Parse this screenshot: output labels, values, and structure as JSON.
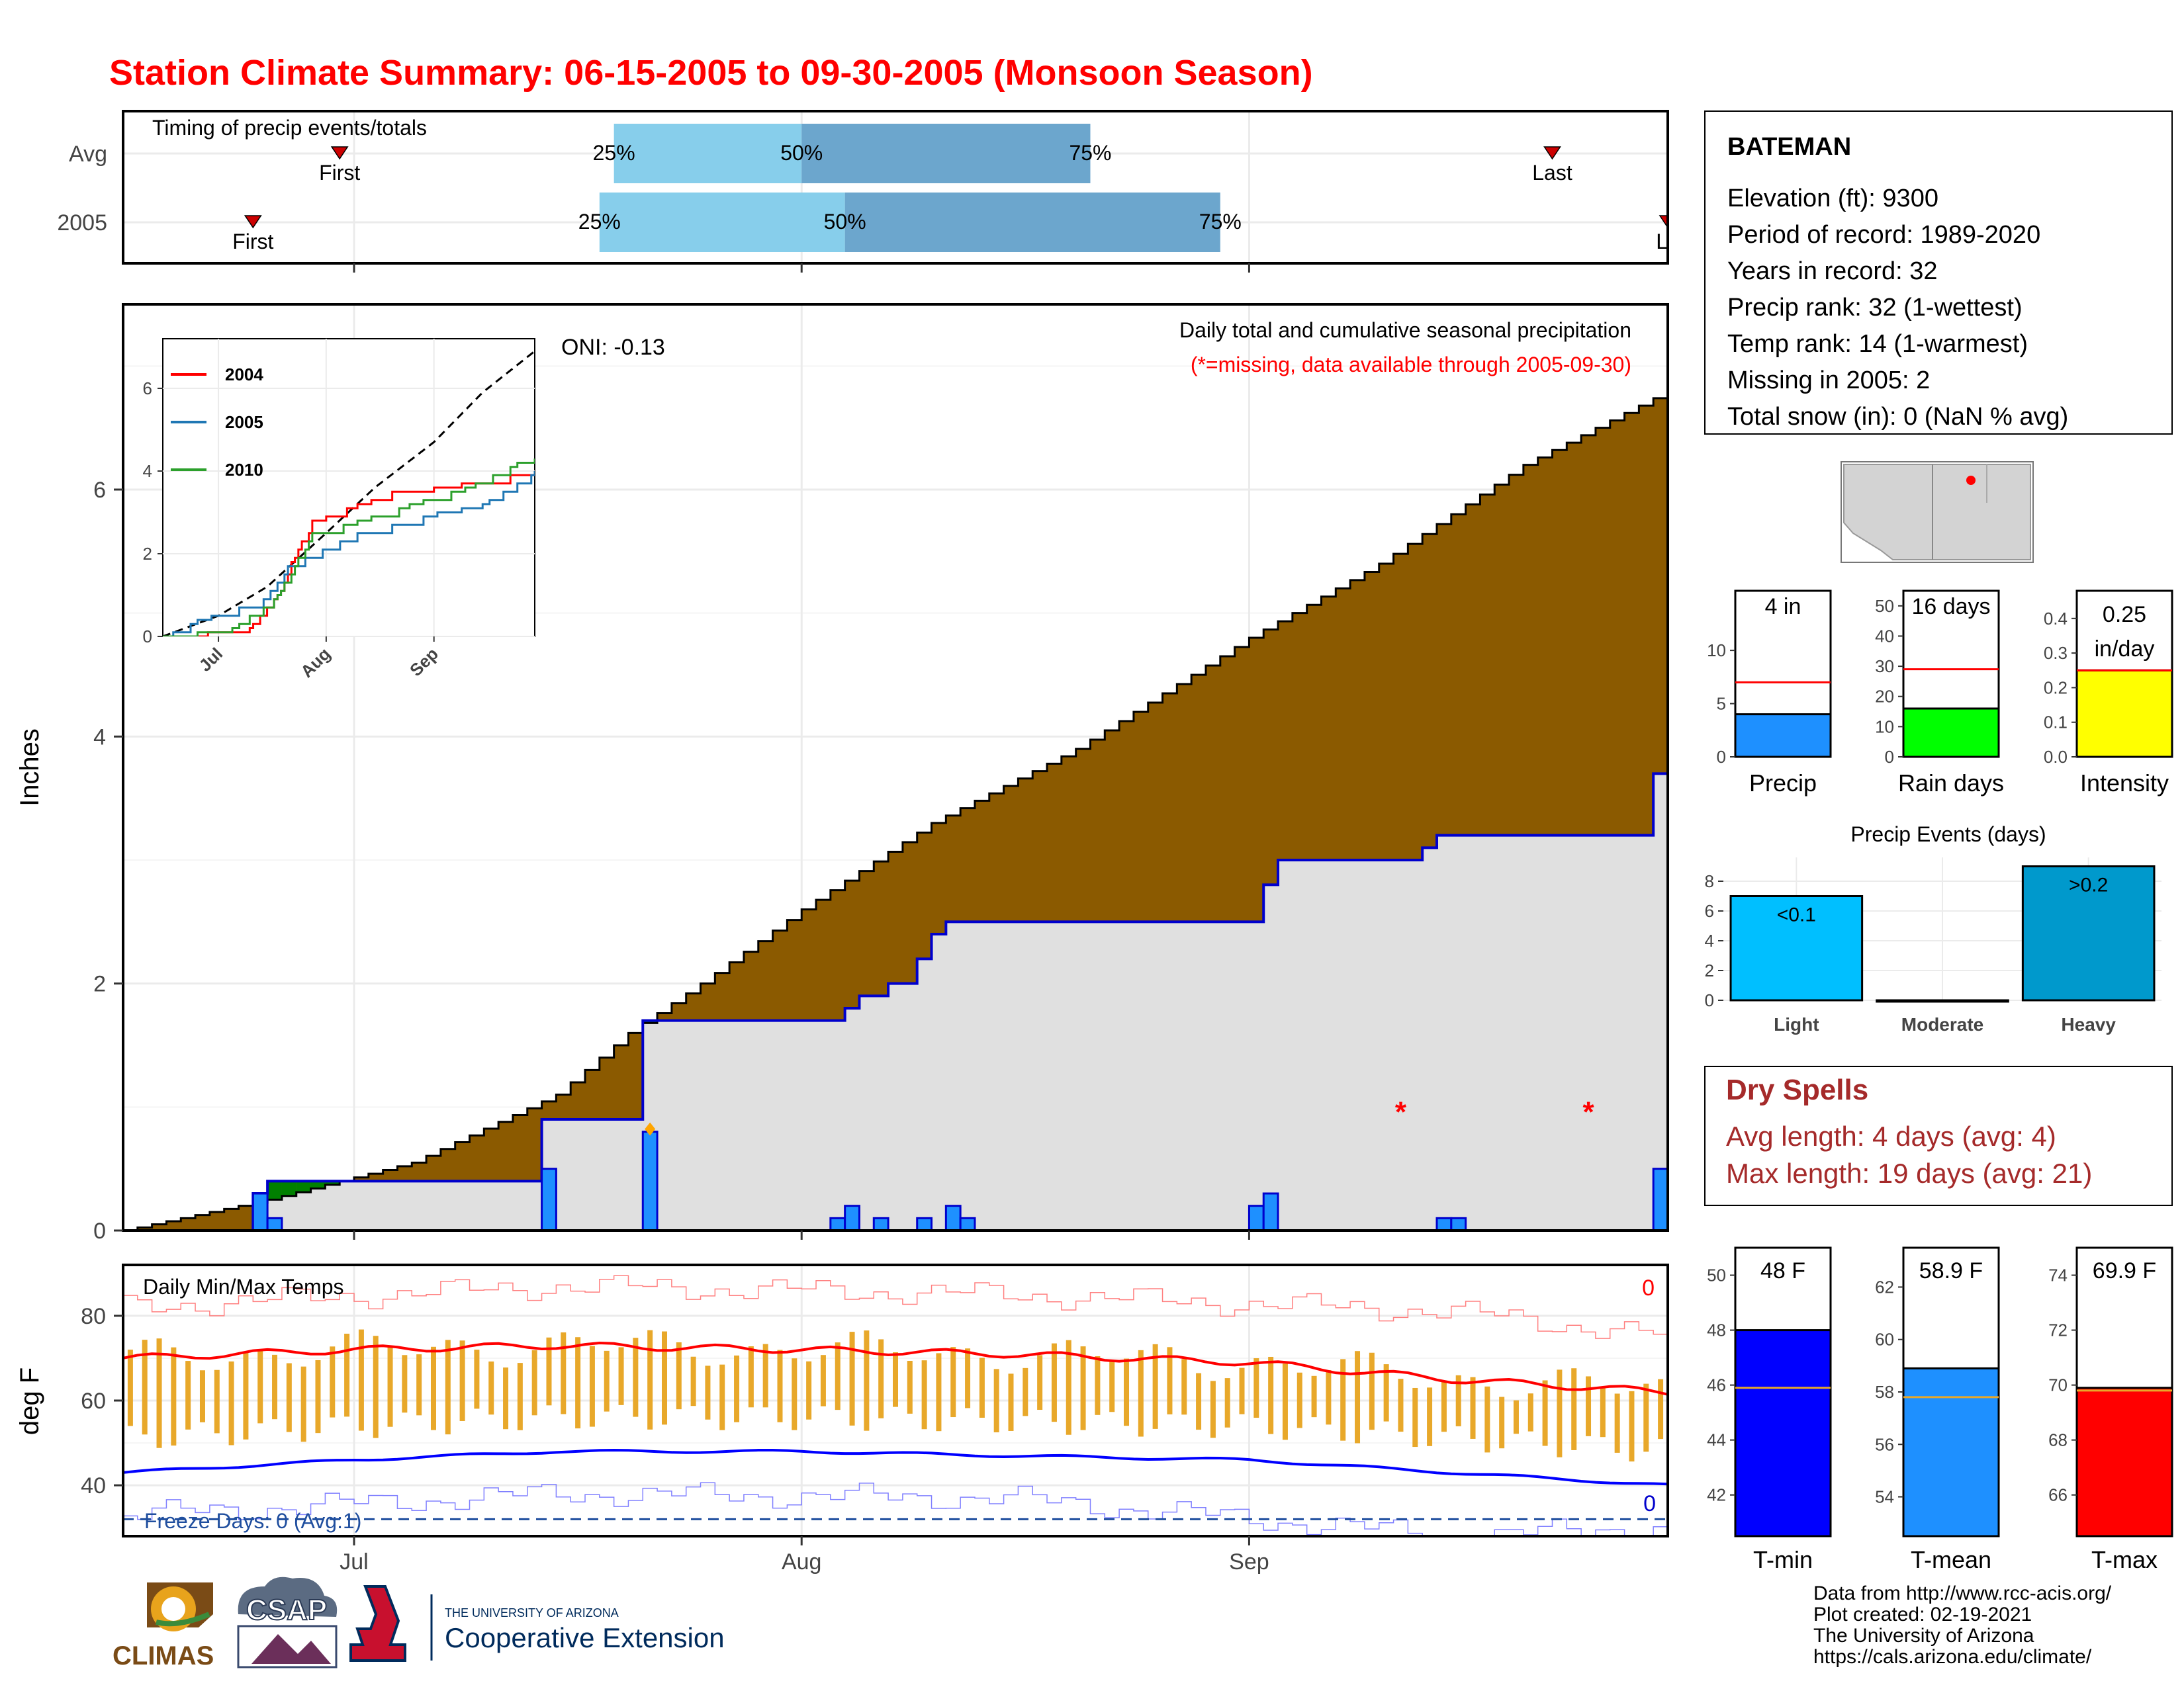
{
  "page": {
    "title": "Station Climate Summary: 06-15-2005 to 09-30-2005 (Monsoon Season)",
    "title_color": "#ff0000"
  },
  "timing": {
    "label": "Timing of precip events/totals",
    "rows": [
      {
        "label": "Avg",
        "first_label": "First",
        "last_label": "Last",
        "first_date": "2005-06-30",
        "last_date": "2005-09-22",
        "p25_date": "2005-07-19",
        "p50_date": "2005-08-01",
        "p75_date": "2005-08-21"
      },
      {
        "label": "2005",
        "first_label": "First",
        "last_label": "La",
        "first_date": "2005-06-24",
        "last_date": "2005-09-30",
        "p25_date": "2005-07-18",
        "p50_date": "2005-08-04",
        "p75_date": "2005-08-30"
      }
    ],
    "pct_labels": [
      "25%",
      "50%",
      "75%"
    ],
    "colors": {
      "light": "#87ceeb",
      "dark": "#6ca6cd",
      "marker": "#cc0000"
    }
  },
  "precip": {
    "ylabel": "Inches",
    "yticks": [
      "0",
      "2",
      "4",
      "6"
    ],
    "oni": "ONI: -0.13",
    "subtitle1": "Daily total and cumulative seasonal precipitation",
    "subtitle2": "(*=missing, data available through 2005-09-30)",
    "missing_marker": "*"
  },
  "inset": {
    "yticks": [
      "0",
      "2",
      "4",
      "6"
    ],
    "xticks": [
      "Jul",
      "Aug",
      "Sep"
    ],
    "legend": [
      {
        "name": "2004",
        "color": "#ff0000"
      },
      {
        "name": "2005",
        "color": "#1f77b4"
      },
      {
        "name": "2010",
        "color": "#2ca02c"
      }
    ]
  },
  "temps": {
    "ylabel": "deg F",
    "label": "Daily Min/Max Temps",
    "yticks": [
      "40",
      "60",
      "80"
    ],
    "top_count": "0",
    "bottom_count": "0",
    "freeze_label": "Freeze Days: 0 (Avg:1)"
  },
  "xaxis": {
    "ticks": [
      "Jul",
      "Aug",
      "Sep"
    ]
  },
  "station": {
    "name": "BATEMAN",
    "lines": [
      "Elevation (ft): 9300",
      "Period of record: 1989-2020",
      "Years in record: 32",
      "Precip rank: 32 (1-wettest)",
      "Temp rank: 14 (1-warmest)",
      "Missing in 2005: 2",
      "Total snow (in): 0 (NaN % avg)"
    ]
  },
  "mini_bars": [
    {
      "label": "Precip",
      "value_label": "4 in",
      "value_label2": "",
      "value": 4.0,
      "avg": 7.0,
      "ymax": 15.6,
      "ticks": [
        "0",
        "5",
        "10"
      ],
      "color": "#1e90ff"
    },
    {
      "label": "Rain days",
      "value_label": "16 days",
      "value_label2": "",
      "value": 16,
      "avg": 29,
      "ymax": 55,
      "ticks": [
        "0",
        "10",
        "20",
        "30",
        "40",
        "50"
      ],
      "color": "#00ff00"
    },
    {
      "label": "Intensity",
      "value_label": "0.25",
      "value_label2": "in/day",
      "value": 0.25,
      "avg": 0.25,
      "ymax": 0.48,
      "ticks": [
        "0.0",
        "0.1",
        "0.2",
        "0.3",
        "0.4"
      ],
      "color": "#ffff00"
    }
  ],
  "precip_events": {
    "title": "Precip Events (days)",
    "categories": [
      "Light",
      "Moderate",
      "Heavy"
    ],
    "values": [
      7,
      0,
      9
    ],
    "bar_labels": [
      "<0.1",
      "",
      ">0.2"
    ],
    "colors": [
      "#00bfff",
      "#00bfff",
      "#0099cc"
    ],
    "ticks": [
      "0",
      "2",
      "4",
      "6",
      "8"
    ]
  },
  "dry_spells": {
    "title": "Dry Spells",
    "avg_line": "Avg length: 4 days (avg: 4)",
    "max_line": "Max length: 19 days (avg: 21)",
    "color": "#a52a2a"
  },
  "temp_bars": [
    {
      "label": "T-min",
      "value_label": "48 F",
      "value": 48,
      "avg": 45.9,
      "ymin": 40.5,
      "ymax": 51,
      "ticks": [
        "42",
        "44",
        "46",
        "48",
        "50"
      ],
      "color": "#0000ff"
    },
    {
      "label": "T-mean",
      "value_label": "58.9 F",
      "value": 58.9,
      "avg": 57.8,
      "ymin": 52.5,
      "ymax": 63.5,
      "ticks": [
        "54",
        "56",
        "58",
        "60",
        "62"
      ],
      "color": "#1e90ff"
    },
    {
      "label": "T-max",
      "value_label": "69.9 F",
      "value": 69.9,
      "avg": 69.8,
      "ymin": 64.5,
      "ymax": 75,
      "ticks": [
        "66",
        "68",
        "70",
        "72",
        "74"
      ],
      "color": "#ff0000"
    }
  ],
  "credits": {
    "lines": [
      "Data from http://www.rcc-acis.org/",
      "Plot created: 02-19-2021",
      "The University of Arizona",
      "https://cals.arizona.edu/climate/"
    ],
    "climas": "CLIMAS",
    "csap": "CSAP",
    "ua_small": "THE UNIVERSITY OF ARIZONA",
    "ua_big": "Cooperative Extension"
  },
  "chart_data": [
    {
      "type": "area",
      "title": "Daily total and cumulative seasonal precipitation",
      "ylabel": "Inches",
      "ylim": [
        0,
        7.5
      ],
      "x_range": [
        "2005-06-15",
        "2005-09-30"
      ],
      "series": [
        {
          "name": "",
          "kind": "cumulative average (brown area top)",
          "x": [
            "2005-06-15",
            "2005-06-25",
            "2005-07-05",
            "2005-07-15",
            "2005-07-20",
            "2005-07-25",
            "2005-08-01",
            "2005-08-10",
            "2005-08-20",
            "2005-09-01",
            "2005-09-10",
            "2005-09-20",
            "2005-09-30"
          ],
          "values": [
            0.0,
            0.25,
            0.55,
            1.1,
            1.6,
            2.0,
            2.6,
            3.3,
            3.9,
            4.8,
            5.4,
            6.2,
            6.8
          ]
        },
        {
          "name": "",
          "kind": "cumulative 2005 (blue step line)",
          "x": [
            "2005-06-15",
            "2005-06-24",
            "2005-06-25",
            "2005-07-13",
            "2005-07-14",
            "2005-07-20",
            "2005-07-21",
            "2005-08-03",
            "2005-08-04",
            "2005-08-05",
            "2005-08-07",
            "2005-08-09",
            "2005-08-10",
            "2005-08-11",
            "2005-09-01",
            "2005-09-02",
            "2005-09-03",
            "2005-09-13",
            "2005-09-14",
            "2005-09-29",
            "2005-09-30"
          ],
          "values": [
            0,
            0.3,
            0.4,
            0.4,
            0.9,
            0.9,
            1.7,
            1.7,
            1.8,
            1.9,
            2.0,
            2.2,
            2.4,
            2.5,
            2.5,
            2.8,
            3.0,
            3.1,
            3.2,
            3.7,
            4.0
          ]
        },
        {
          "name": "",
          "kind": "daily precipitation (blue bars)",
          "x": [
            "2005-06-24",
            "2005-06-25",
            "2005-07-14",
            "2005-07-21",
            "2005-08-03",
            "2005-08-04",
            "2005-08-06",
            "2005-08-09",
            "2005-08-11",
            "2005-08-12",
            "2005-09-01",
            "2005-09-02",
            "2005-09-14",
            "2005-09-15",
            "2005-09-29",
            "2005-09-30"
          ],
          "values": [
            0.3,
            0.1,
            0.5,
            0.8,
            0.1,
            0.2,
            0.1,
            0.1,
            0.2,
            0.1,
            0.2,
            0.3,
            0.1,
            0.1,
            0.5,
            0.3
          ]
        },
        {
          "name": "",
          "kind": "missing days",
          "x": [
            "2005-09-11",
            "2005-09-24"
          ],
          "values": [
            1.0,
            1.0
          ]
        }
      ]
    },
    {
      "type": "line",
      "title": "",
      "xticks": [
        "Jul",
        "Aug",
        "Sep"
      ],
      "ylim": [
        0,
        7.2
      ],
      "series": [
        {
          "name": "",
          "kind": "average (dashed black)",
          "x": [
            "06-15",
            "07-01",
            "07-15",
            "08-01",
            "08-15",
            "09-01",
            "09-15",
            "09-30"
          ],
          "values": [
            0,
            0.5,
            1.2,
            2.5,
            3.6,
            4.7,
            5.9,
            6.9
          ]
        },
        {
          "name": "2004",
          "x": [
            "06-15",
            "07-10",
            "07-18",
            "07-22",
            "07-28",
            "08-10",
            "08-20",
            "09-01",
            "09-30"
          ],
          "values": [
            0,
            0.2,
            1.0,
            1.8,
            2.8,
            3.2,
            3.5,
            3.6,
            4.0
          ]
        },
        {
          "name": "2005",
          "x": [
            "06-15",
            "06-25",
            "07-14",
            "07-21",
            "08-10",
            "09-02",
            "09-15",
            "09-30"
          ],
          "values": [
            0,
            0.4,
            0.9,
            1.7,
            2.5,
            3.0,
            3.2,
            4.0
          ]
        },
        {
          "name": "2010",
          "x": [
            "06-15",
            "07-05",
            "07-18",
            "07-28",
            "08-10",
            "08-25",
            "09-10",
            "09-25",
            "09-30"
          ],
          "values": [
            0,
            0.2,
            1.0,
            2.5,
            2.8,
            3.2,
            3.6,
            4.2,
            4.3
          ]
        }
      ]
    },
    {
      "type": "line",
      "title": "Daily Min/Max Temps",
      "ylabel": "deg F",
      "ylim": [
        28,
        92
      ],
      "x_range": [
        "2005-06-15",
        "2005-09-30"
      ],
      "series": [
        {
          "name": "",
          "kind": "avg max (red)",
          "x": [
            "06-15",
            "07-01",
            "07-15",
            "08-01",
            "08-15",
            "09-01",
            "09-15",
            "09-30"
          ],
          "values": [
            70,
            72,
            73,
            72,
            71,
            69,
            65,
            62
          ]
        },
        {
          "name": "",
          "kind": "avg min (blue)",
          "x": [
            "06-15",
            "07-01",
            "07-15",
            "08-01",
            "08-15",
            "09-01",
            "09-15",
            "09-30"
          ],
          "values": [
            43,
            46,
            48,
            48,
            47,
            46,
            43,
            40
          ]
        },
        {
          "name": "",
          "kind": "record max (thin red)",
          "x": [
            "06-15",
            "07-15",
            "08-15",
            "09-15",
            "09-30"
          ],
          "values": [
            82,
            87,
            85,
            81,
            75
          ]
        },
        {
          "name": "",
          "kind": "record min (thin blue)",
          "x": [
            "06-15",
            "07-15",
            "08-15",
            "09-15",
            "09-30"
          ],
          "values": [
            33,
            38,
            37,
            28,
            30
          ]
        },
        {
          "name": "",
          "kind": "freeze line (dashed)",
          "values": [
            32
          ]
        }
      ]
    }
  ]
}
